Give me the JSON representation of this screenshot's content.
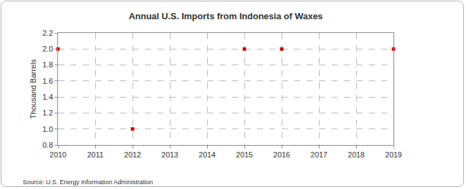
{
  "chart_data": {
    "type": "scatter",
    "title": "Annual U.S. Imports from Indonesia of Waxes",
    "y_label": "Thousand Barrels",
    "annotations": [
      "Source: U.S. Energy Information Administration"
    ],
    "x": [
      2010,
      2012,
      2015,
      2016,
      2019
    ],
    "values": [
      2,
      1,
      2,
      2,
      2
    ],
    "color": "#cc0000",
    "marker": "square",
    "xlim": [
      2010,
      2019
    ],
    "xticks": [
      2010,
      2011,
      2012,
      2013,
      2014,
      2015,
      2016,
      2017,
      2018,
      2019
    ],
    "ylim": [
      0.8,
      2.2
    ],
    "yticks": [
      0.8,
      {
        "value": 1,
        "label": "1.0"
      },
      1.2,
      1.4,
      1.6,
      1.8,
      {
        "value": 2,
        "label": "2.0"
      },
      2.2
    ],
    "grid": true
  }
}
